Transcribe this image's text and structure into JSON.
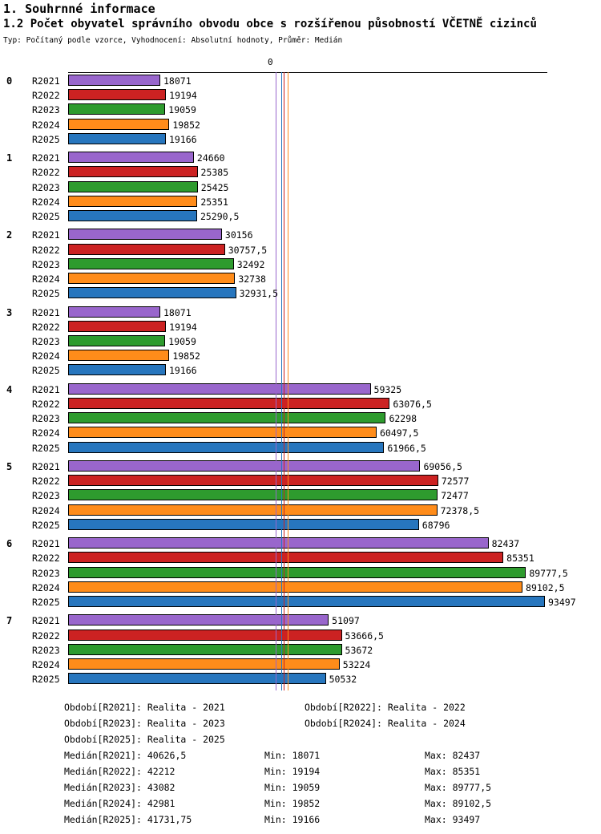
{
  "header": {
    "title1": "1. Souhrnné informace",
    "title2": "1.2 Počet obyvatel správního obvodu obce s rozšířenou působností VČETNĚ cizinců",
    "meta": "Typ: Počítaný podle vzorce, Vyhodnocení: Absolutní hodnoty, Průměr: Medián"
  },
  "chart_data": {
    "type": "bar",
    "orientation": "horizontal",
    "title": "1.2 Počet obyvatel správního obvodu obce s rozšířenou působností VČETNĚ cizinců",
    "axis_zero_label": "0",
    "xlim": [
      0,
      93497
    ],
    "grid": false,
    "bar_border_color": "#000000",
    "categories": [
      "0",
      "1",
      "2",
      "3",
      "4",
      "5",
      "6",
      "7"
    ],
    "series": [
      {
        "name": "R2021",
        "color": "#9966CC",
        "values": [
          18071,
          24660,
          30156,
          18071,
          59325,
          69056.5,
          82437,
          51097
        ],
        "display": [
          "18071",
          "24660",
          "30156",
          "18071",
          "59325",
          "69056,5",
          "82437",
          "51097"
        ],
        "median": 40626.5
      },
      {
        "name": "R2022",
        "color": "#CC2222",
        "values": [
          19194,
          25385,
          30757.5,
          19194,
          63076.5,
          72577,
          85351,
          53666.5
        ],
        "display": [
          "19194",
          "25385",
          "30757,5",
          "19194",
          "63076,5",
          "72577",
          "85351",
          "53666,5"
        ],
        "median": 42212
      },
      {
        "name": "R2023",
        "color": "#2E9B2E",
        "values": [
          19059,
          25425,
          32492,
          19059,
          62298,
          72477,
          89777.5,
          53672
        ],
        "display": [
          "19059",
          "25425",
          "32492",
          "19059",
          "62298",
          "72477",
          "89777,5",
          "53672"
        ],
        "median": 43082
      },
      {
        "name": "R2024",
        "color": "#FF8C1A",
        "values": [
          19852,
          25351,
          32738,
          19852,
          60497.5,
          72378.5,
          89102.5,
          53224
        ],
        "display": [
          "19852",
          "25351",
          "32738",
          "19852",
          "60497,5",
          "72378,5",
          "89102,5",
          "53224"
        ],
        "median": 42981
      },
      {
        "name": "R2025",
        "color": "#2776BE",
        "values": [
          19166,
          25290.5,
          32931.5,
          19166,
          61966.5,
          68796,
          93497,
          50532
        ],
        "display": [
          "19166",
          "25290,5",
          "32931,5",
          "19166",
          "61966,5",
          "68796",
          "93497",
          "50532"
        ],
        "median": 41731.75
      }
    ]
  },
  "footer": {
    "period_rows": [
      {
        "left": "Období[R2021]: Realita - 2021",
        "right": "Období[R2022]: Realita - 2022"
      },
      {
        "left": "Období[R2023]: Realita - 2023",
        "right": "Období[R2024]: Realita - 2024"
      },
      {
        "left": "Období[R2025]: Realita - 2025",
        "right": ""
      }
    ],
    "stat_rows": [
      {
        "median": "Medián[R2021]: 40626,5",
        "min": "Min: 18071",
        "max": "Max: 82437"
      },
      {
        "median": "Medián[R2022]: 42212",
        "min": "Min: 19194",
        "max": "Max: 85351"
      },
      {
        "median": "Medián[R2023]: 43082",
        "min": "Min: 19059",
        "max": "Max: 89777,5"
      },
      {
        "median": "Medián[R2024]: 42981",
        "min": "Min: 19852",
        "max": "Max: 89102,5"
      },
      {
        "median": "Medián[R2025]: 41731,75",
        "min": "Min: 19166",
        "max": "Max: 93497"
      }
    ]
  }
}
